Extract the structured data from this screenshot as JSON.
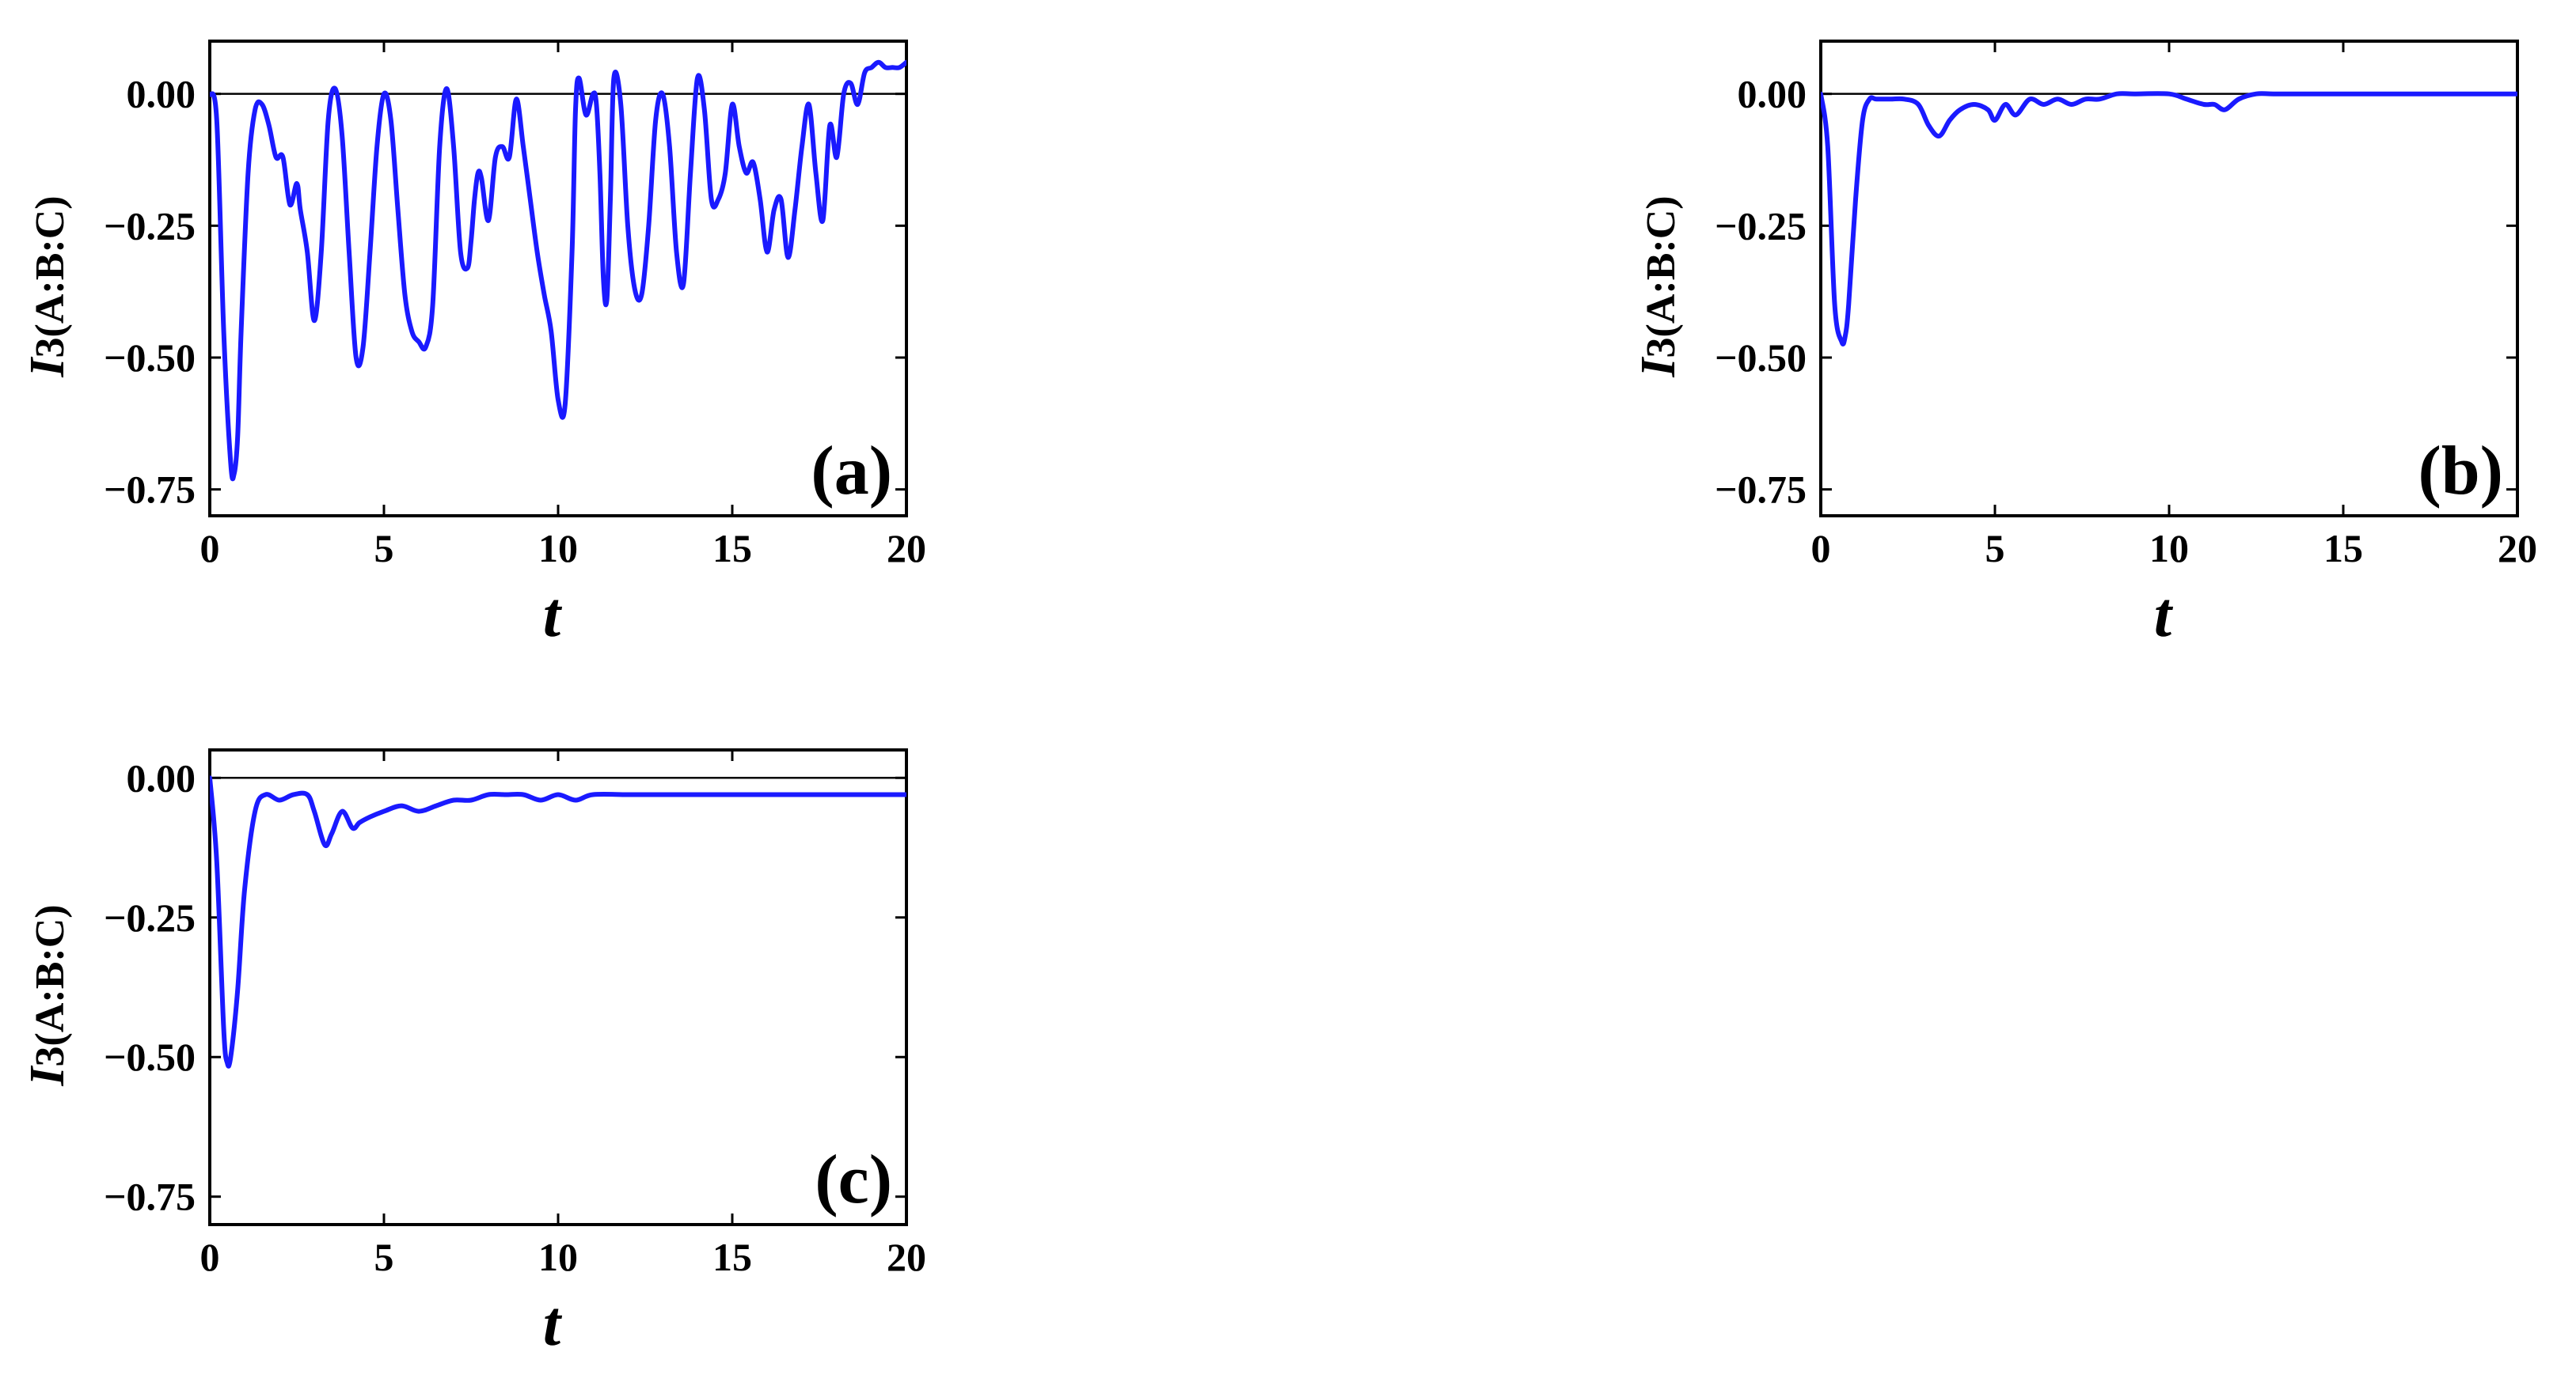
{
  "chart_data": [
    {
      "type": "line",
      "panel_label": "(a)",
      "xlabel": "t",
      "ylabel_parts": [
        "I",
        "3",
        "(A:B:C)"
      ],
      "xlim": [
        0,
        20
      ],
      "ylim": [
        -0.8,
        0.1
      ],
      "xticks": [
        0,
        5,
        10,
        15,
        20
      ],
      "xtick_labels": [
        "0",
        "5",
        "10",
        "15",
        "20"
      ],
      "yticks": [
        0.0,
        -0.25,
        -0.5,
        -0.75
      ],
      "ytick_labels": [
        "0.00",
        "−0.25",
        "−0.50",
        "−0.75"
      ],
      "reference_line_y": 0,
      "series_color": "#1a1aff",
      "series": [
        {
          "x": [
            0,
            0.2,
            0.4,
            0.6,
            0.7,
            0.8,
            0.9,
            1.1,
            1.3,
            1.5,
            1.7,
            1.9,
            2.1,
            2.3,
            2.5,
            2.6,
            2.8,
            3.0,
            3.2,
            3.4,
            3.6,
            3.8,
            4.0,
            4.2,
            4.4,
            4.6,
            4.8,
            5.0,
            5.2,
            5.4,
            5.6,
            5.8,
            6.0,
            6.2,
            6.4,
            6.6,
            6.8,
            7.0,
            7.2,
            7.4,
            7.5,
            7.6,
            7.7,
            7.8,
            8.0,
            8.2,
            8.4,
            8.6,
            8.8,
            9.0,
            9.2,
            9.4,
            9.6,
            9.8,
            10.0,
            10.2,
            10.4,
            10.5,
            10.6,
            10.8,
            11.0,
            11.1,
            11.2,
            11.3,
            11.4,
            11.5,
            11.6,
            11.8,
            12.0,
            12.2,
            12.4,
            12.6,
            12.8,
            13.0,
            13.2,
            13.4,
            13.6,
            13.8,
            14.0,
            14.2,
            14.4,
            14.6,
            14.8,
            15.0,
            15.2,
            15.4,
            15.6,
            15.8,
            16.0,
            16.2,
            16.4,
            16.6,
            16.8,
            17.0,
            17.2,
            17.4,
            17.6,
            17.8,
            18.0,
            18.2,
            18.4,
            18.6,
            18.8,
            19.0,
            19.2,
            19.4,
            19.6,
            19.8,
            20.0
          ],
          "values": [
            0.0,
            -0.05,
            -0.45,
            -0.7,
            -0.72,
            -0.65,
            -0.45,
            -0.15,
            -0.03,
            -0.02,
            -0.06,
            -0.12,
            -0.12,
            -0.21,
            -0.17,
            -0.22,
            -0.3,
            -0.43,
            -0.3,
            -0.05,
            0.01,
            -0.08,
            -0.3,
            -0.5,
            -0.48,
            -0.3,
            -0.1,
            0.0,
            -0.05,
            -0.22,
            -0.38,
            -0.45,
            -0.47,
            -0.48,
            -0.4,
            -0.1,
            0.01,
            -0.1,
            -0.3,
            -0.33,
            -0.28,
            -0.2,
            -0.15,
            -0.16,
            -0.24,
            -0.12,
            -0.1,
            -0.12,
            -0.01,
            -0.1,
            -0.2,
            -0.3,
            -0.38,
            -0.45,
            -0.58,
            -0.59,
            -0.3,
            -0.03,
            0.03,
            -0.04,
            0.0,
            -0.02,
            -0.15,
            -0.35,
            -0.39,
            -0.2,
            0.03,
            -0.02,
            -0.25,
            -0.37,
            -0.38,
            -0.25,
            -0.05,
            0.0,
            -0.1,
            -0.3,
            -0.36,
            -0.15,
            0.03,
            -0.03,
            -0.2,
            -0.2,
            -0.15,
            -0.02,
            -0.1,
            -0.15,
            -0.13,
            -0.2,
            -0.3,
            -0.22,
            -0.2,
            -0.31,
            -0.22,
            -0.1,
            -0.02,
            -0.15,
            -0.24,
            -0.06,
            -0.12,
            0.0,
            0.02,
            -0.02,
            0.04,
            0.05,
            0.06,
            0.05,
            0.05,
            0.05,
            0.06
          ]
        }
      ]
    },
    {
      "type": "line",
      "panel_label": "(b)",
      "xlabel": "t",
      "ylabel_parts": [
        "I",
        "3",
        "(A:B:C)"
      ],
      "xlim": [
        0,
        20
      ],
      "ylim": [
        -0.8,
        0.1
      ],
      "xticks": [
        0,
        5,
        10,
        15,
        20
      ],
      "xtick_labels": [
        "0",
        "5",
        "10",
        "15",
        "20"
      ],
      "yticks": [
        0.0,
        -0.25,
        -0.5,
        -0.75
      ],
      "ytick_labels": [
        "0.00",
        "−0.25",
        "−0.50",
        "−0.75"
      ],
      "reference_line_y": 0,
      "series_color": "#1a1aff",
      "series": [
        {
          "x": [
            0,
            0.2,
            0.4,
            0.6,
            0.7,
            0.8,
            1.0,
            1.2,
            1.4,
            1.6,
            2.0,
            2.4,
            2.8,
            3.1,
            3.4,
            3.7,
            4.0,
            4.4,
            4.8,
            5.0,
            5.3,
            5.6,
            6.0,
            6.4,
            6.8,
            7.2,
            7.6,
            8.0,
            8.5,
            9.0,
            10.0,
            10.5,
            11.0,
            11.3,
            11.6,
            12.0,
            12.5,
            13.0,
            14.0,
            15.0,
            16.0,
            17.0,
            18.0,
            19.0,
            20.0
          ],
          "values": [
            0.0,
            -0.1,
            -0.4,
            -0.47,
            -0.46,
            -0.4,
            -0.2,
            -0.05,
            -0.01,
            -0.01,
            -0.01,
            -0.01,
            -0.02,
            -0.06,
            -0.08,
            -0.05,
            -0.03,
            -0.02,
            -0.03,
            -0.05,
            -0.02,
            -0.04,
            -0.01,
            -0.02,
            -0.01,
            -0.02,
            -0.01,
            -0.01,
            0.0,
            0.0,
            0.0,
            -0.01,
            -0.02,
            -0.02,
            -0.03,
            -0.01,
            0.0,
            0.0,
            0.0,
            0.0,
            0.0,
            0.0,
            0.0,
            0.0,
            0.0
          ]
        }
      ]
    },
    {
      "type": "line",
      "panel_label": "(c)",
      "xlabel": "t",
      "ylabel_parts": [
        "I",
        "3",
        "(A:B:C)"
      ],
      "xlim": [
        0,
        20
      ],
      "ylim": [
        -0.8,
        0.05
      ],
      "xticks": [
        0,
        5,
        10,
        15,
        20
      ],
      "xtick_labels": [
        "0",
        "5",
        "10",
        "15",
        "20"
      ],
      "yticks": [
        0.0,
        -0.25,
        -0.5,
        -0.75
      ],
      "ytick_labels": [
        "0.00",
        "−0.25",
        "−0.50",
        "−0.75"
      ],
      "reference_line_y": 0,
      "series_color": "#1a1aff",
      "series": [
        {
          "x": [
            0,
            0.2,
            0.4,
            0.5,
            0.6,
            0.8,
            1.0,
            1.3,
            1.6,
            2.0,
            2.4,
            2.8,
            3.0,
            3.3,
            3.5,
            3.8,
            4.1,
            4.3,
            4.6,
            5.0,
            5.5,
            6.0,
            6.5,
            7.0,
            7.5,
            8.0,
            8.5,
            9.0,
            9.5,
            10.0,
            10.5,
            11.0,
            12.0,
            13.0,
            14.0,
            15.0,
            16.0,
            17.0,
            18.0,
            19.0,
            20.0
          ],
          "values": [
            0.0,
            -0.15,
            -0.45,
            -0.51,
            -0.5,
            -0.38,
            -0.2,
            -0.06,
            -0.03,
            -0.04,
            -0.03,
            -0.03,
            -0.06,
            -0.12,
            -0.1,
            -0.06,
            -0.09,
            -0.08,
            -0.07,
            -0.06,
            -0.05,
            -0.06,
            -0.05,
            -0.04,
            -0.04,
            -0.03,
            -0.03,
            -0.03,
            -0.04,
            -0.03,
            -0.04,
            -0.03,
            -0.03,
            -0.03,
            -0.03,
            -0.03,
            -0.03,
            -0.03,
            -0.03,
            -0.03,
            -0.03
          ]
        }
      ]
    }
  ]
}
